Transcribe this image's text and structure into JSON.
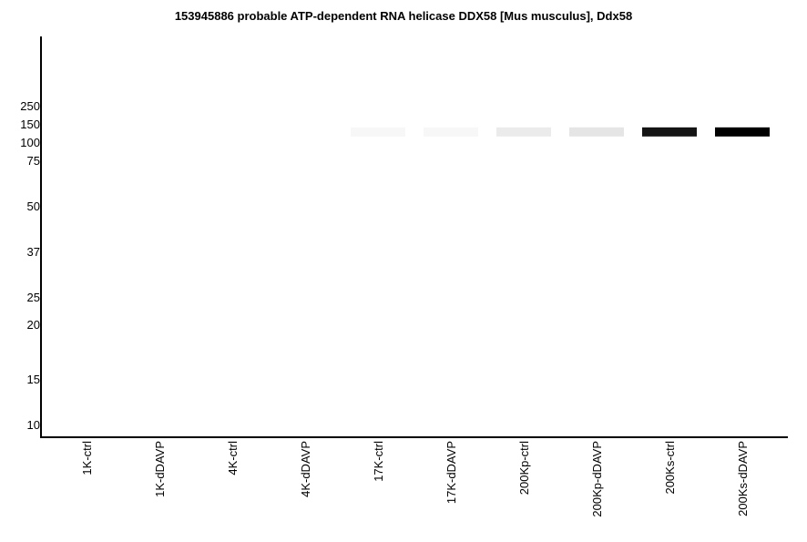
{
  "chart_data": {
    "type": "bar",
    "title": "153945886 probable ATP-dependent RNA helicase DDX58 [Mus musculus], Ddx58",
    "xlabel": "",
    "ylabel": "",
    "y_ticks": [
      "250",
      "150",
      "100",
      "75",
      "50",
      "37",
      "25",
      "20",
      "15",
      "10"
    ],
    "y_tick_values": [
      250,
      150,
      100,
      75,
      50,
      37,
      25,
      20,
      15,
      10
    ],
    "y_scale": "log",
    "ylim": [
      9,
      500
    ],
    "band_kda": 128,
    "band_color": "#000000",
    "categories": [
      "1K-ctrl",
      "1K-dDAVP",
      "4K-ctrl",
      "4K-dDAVP",
      "17K-ctrl",
      "17K-dDAVP",
      "200Kp-ctrl",
      "200Kp-dDAVP",
      "200Ks-ctrl",
      "200Ks-dDAVP"
    ],
    "values": [
      0,
      0,
      0,
      0,
      0.03,
      0.03,
      0.08,
      0.1,
      0.92,
      1.0
    ],
    "grid": false,
    "legend": "none"
  }
}
